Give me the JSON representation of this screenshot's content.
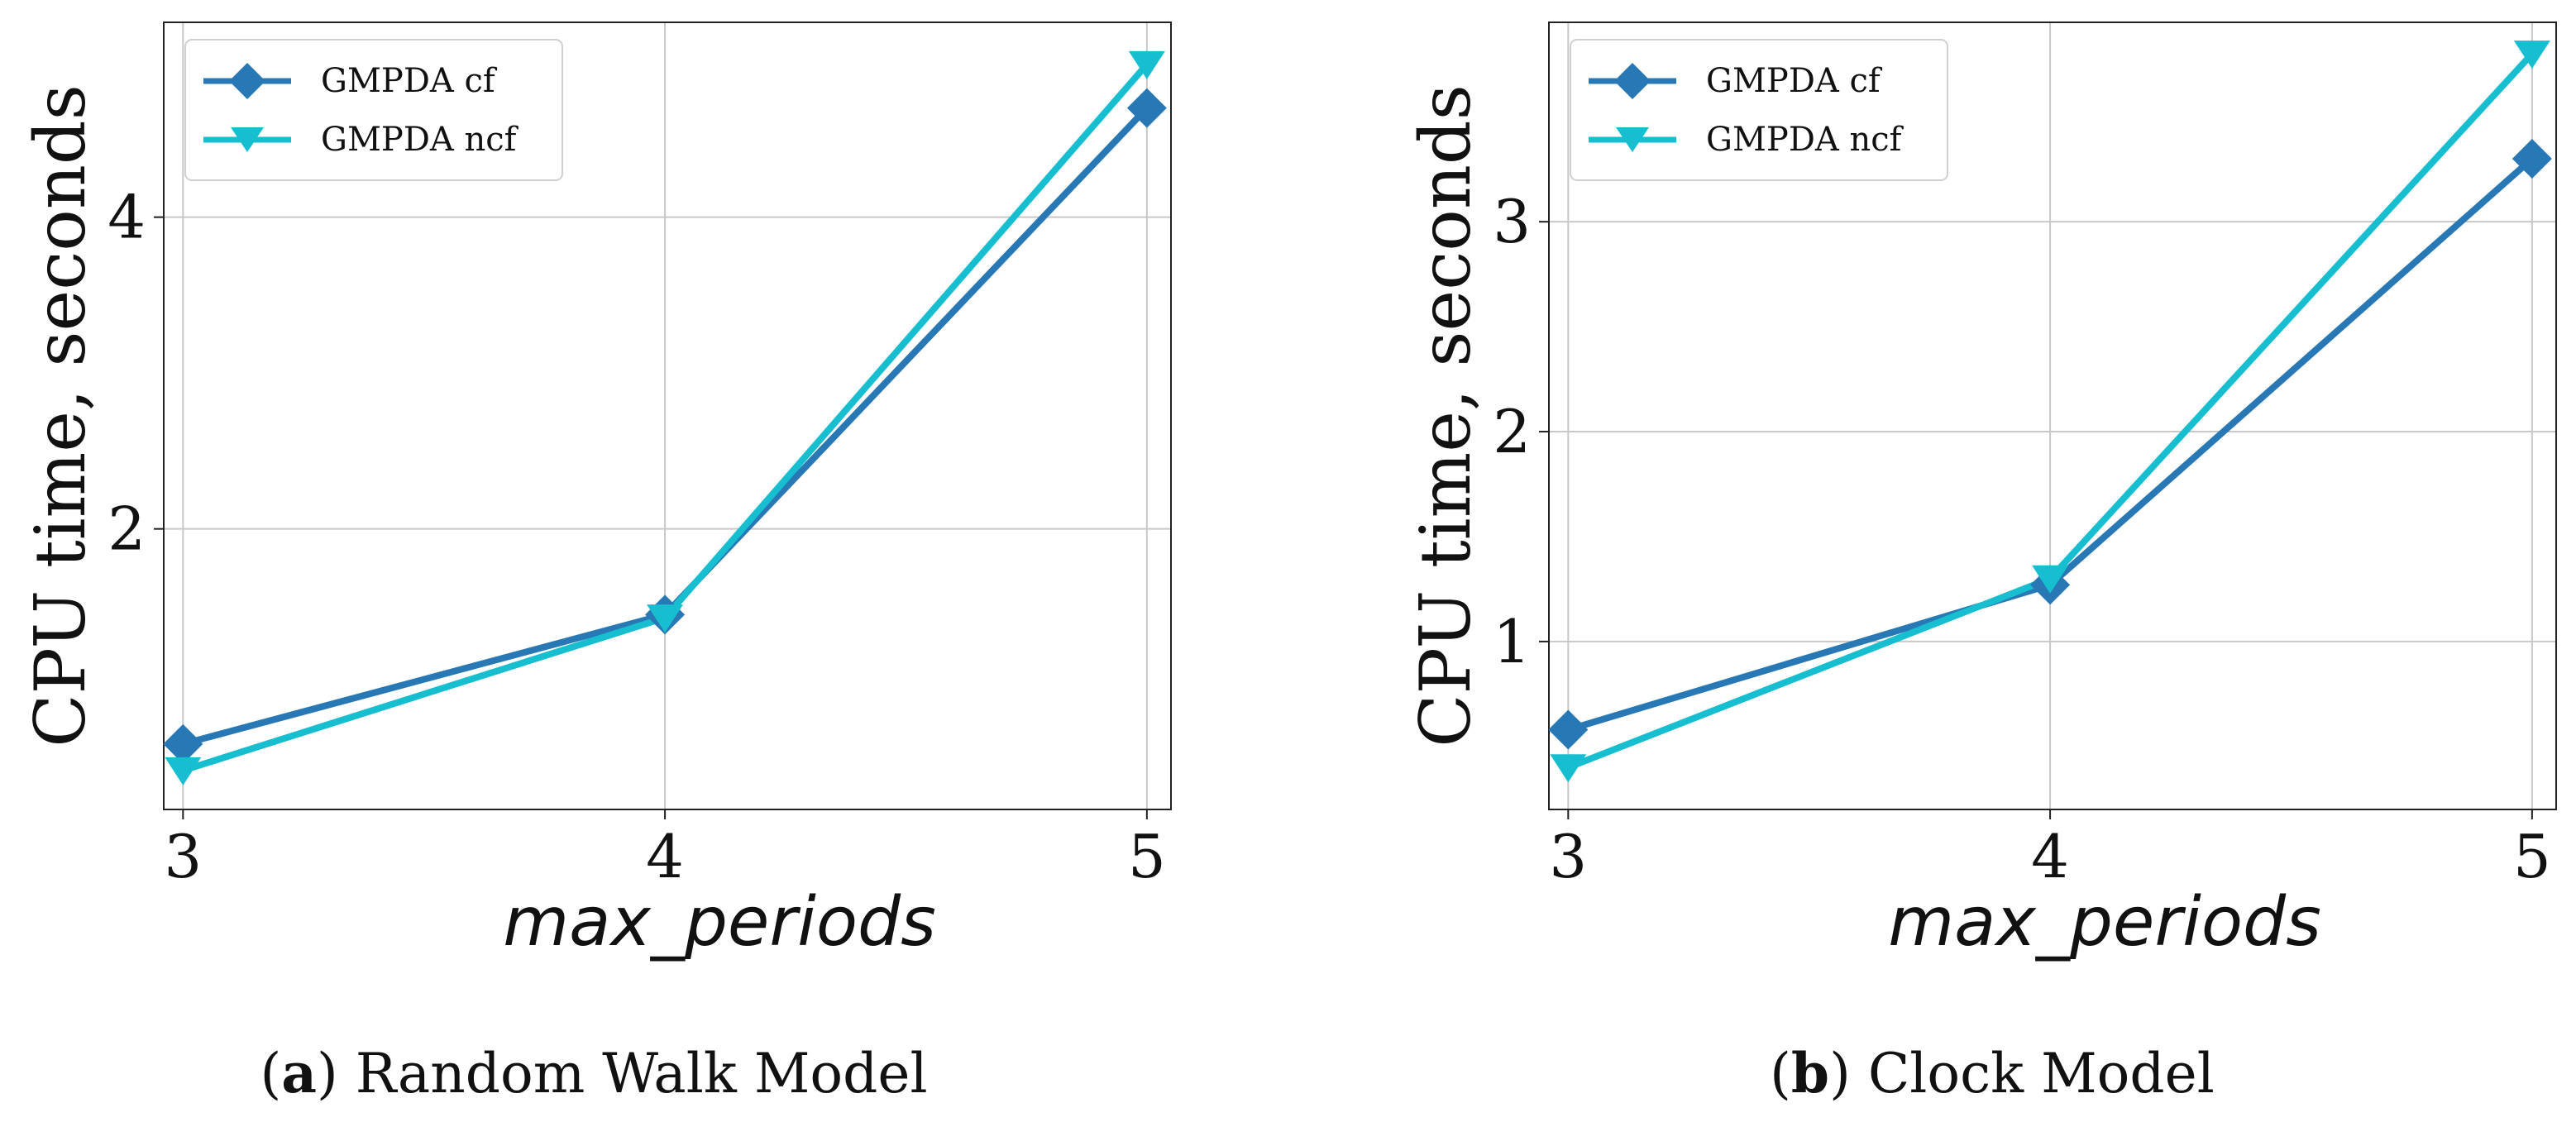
{
  "chart_data": [
    {
      "type": "line",
      "id": "a",
      "x": [
        3,
        4,
        5
      ],
      "xlim": [
        2.96,
        5.05
      ],
      "xticks": [
        3,
        4,
        5
      ],
      "ylim": [
        0.2,
        5.25
      ],
      "yticks": [
        2,
        4
      ],
      "xlabel": "max_periods",
      "ylabel": "CPU time, seconds",
      "grid": true,
      "legend_position": "top-left",
      "series": [
        {
          "name": "GMPDA cf",
          "values": [
            0.62,
            1.45,
            4.7
          ],
          "color": "#2878b5",
          "marker": "diamond"
        },
        {
          "name": "GMPDA ncf",
          "values": [
            0.45,
            1.43,
            4.98
          ],
          "color": "#17becf",
          "marker": "triangle-down"
        }
      ],
      "caption": {
        "label": "a",
        "text": "Random Walk Model"
      }
    },
    {
      "type": "line",
      "id": "b",
      "x": [
        3,
        4,
        5
      ],
      "xlim": [
        2.96,
        5.05
      ],
      "xticks": [
        3,
        4,
        5
      ],
      "ylim": [
        0.2,
        3.95
      ],
      "yticks": [
        1,
        2,
        3
      ],
      "xlabel": "max_periods",
      "ylabel": "CPU time, seconds",
      "grid": true,
      "legend_position": "top-left",
      "series": [
        {
          "name": "GMPDA cf",
          "values": [
            0.58,
            1.27,
            3.3
          ],
          "color": "#2878b5",
          "marker": "diamond"
        },
        {
          "name": "GMPDA ncf",
          "values": [
            0.4,
            1.3,
            3.8
          ],
          "color": "#17becf",
          "marker": "triangle-down"
        }
      ],
      "caption": {
        "label": "b",
        "text": "Clock Model"
      }
    }
  ]
}
